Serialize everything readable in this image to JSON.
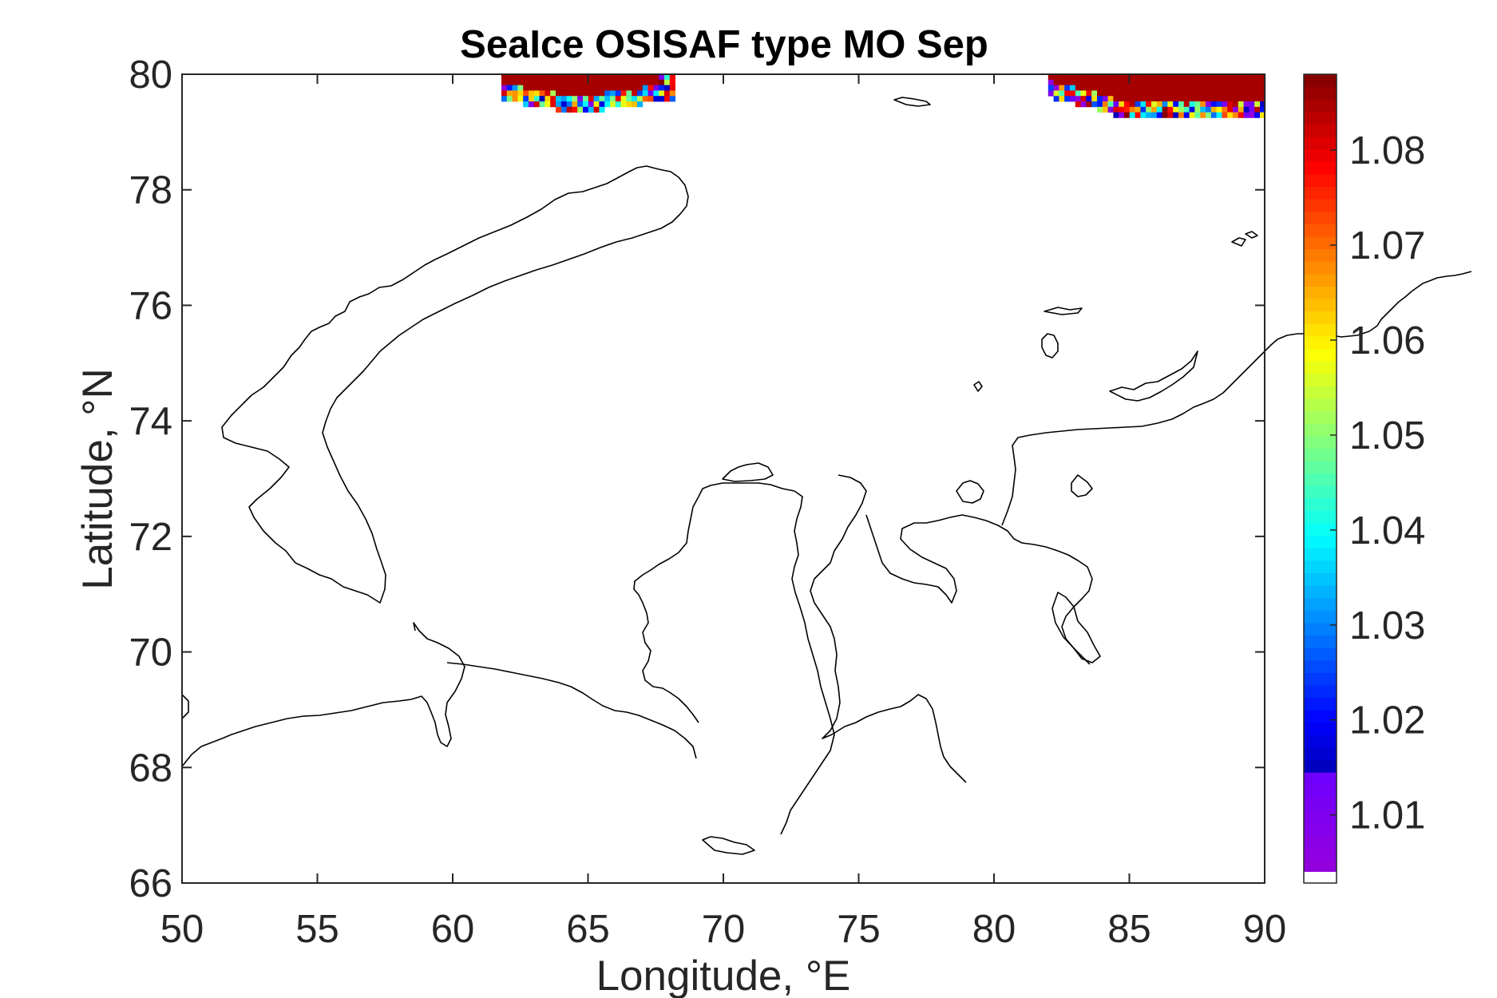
{
  "chart_data": {
    "type": "heatmap",
    "title": "SeaIce OSISAF type MO Sep",
    "xlabel": "Longitude, °E",
    "ylabel": "Latitude, °N",
    "xlim": [
      50,
      90
    ],
    "ylim": [
      66,
      80
    ],
    "x_ticks": [
      50,
      55,
      60,
      65,
      70,
      75,
      80,
      85,
      90
    ],
    "x_tick_labels": [
      "50",
      "55",
      "60",
      "65",
      "70",
      "75",
      "80",
      "85",
      "90"
    ],
    "y_ticks": [
      66,
      68,
      70,
      72,
      74,
      76,
      78,
      80
    ],
    "y_tick_labels": [
      "66",
      "68",
      "70",
      "72",
      "74",
      "76",
      "78",
      "80"
    ],
    "colorbar": {
      "range": [
        1.004,
        1.088
      ],
      "ticks": [
        1.01,
        1.02,
        1.03,
        1.04,
        1.05,
        1.06,
        1.07,
        1.08
      ],
      "tick_labels": [
        "1.01",
        "1.02",
        "1.03",
        "1.04",
        "1.05",
        "1.06",
        "1.07",
        "1.08"
      ],
      "colormap": "jet"
    },
    "grid": false,
    "series": [
      {
        "value": 1.085,
        "lon_range": [
          61.8,
          68.2
        ],
        "lat_range": [
          79.4,
          80.0
        ]
      },
      {
        "value": 1.085,
        "lon_range": [
          82.0,
          90.0
        ],
        "lat_range": [
          79.3,
          80.0
        ]
      }
    ]
  }
}
